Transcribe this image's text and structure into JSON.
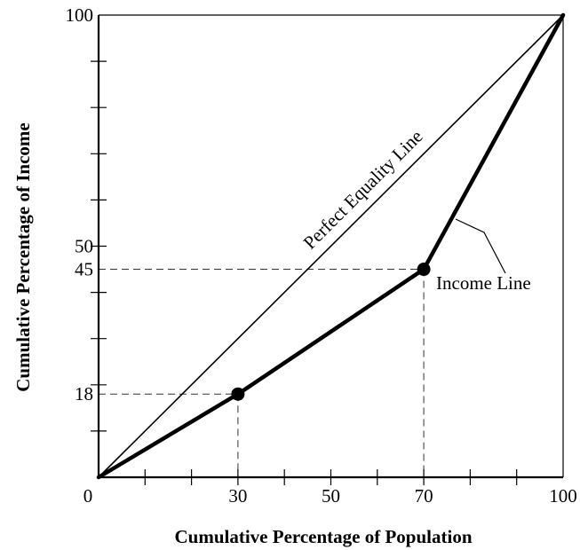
{
  "chart_data": {
    "type": "line",
    "title": "",
    "xlabel": "Cumulative Percentage of Population",
    "ylabel": "Cumulative Percentage of Income",
    "xlim": [
      0,
      100
    ],
    "ylim": [
      0,
      100
    ],
    "x_tick_labels": [
      "0",
      "30",
      "50",
      "70",
      "100"
    ],
    "y_tick_labels": [
      "18",
      "45",
      "50",
      "100"
    ],
    "x_minor_ticks": [
      10,
      20,
      30,
      40,
      50,
      60,
      70,
      80,
      90
    ],
    "y_minor_ticks": [
      10,
      20,
      30,
      40,
      50,
      60,
      70,
      80,
      90
    ],
    "series": [
      {
        "name": "Perfect Equality Line",
        "points": [
          [
            0,
            0
          ],
          [
            100,
            100
          ]
        ],
        "color": "#000000",
        "style": "thin"
      },
      {
        "name": "Income Line",
        "points": [
          [
            0,
            0
          ],
          [
            30,
            18
          ],
          [
            70,
            45
          ],
          [
            100,
            100
          ]
        ],
        "markers": [
          [
            30,
            18
          ],
          [
            70,
            45
          ]
        ],
        "color": "#000000",
        "style": "thick"
      }
    ],
    "reference_lines": [
      {
        "x": 30,
        "y": 18
      },
      {
        "x": 70,
        "y": 45
      }
    ],
    "grid": false,
    "legend": "none"
  }
}
